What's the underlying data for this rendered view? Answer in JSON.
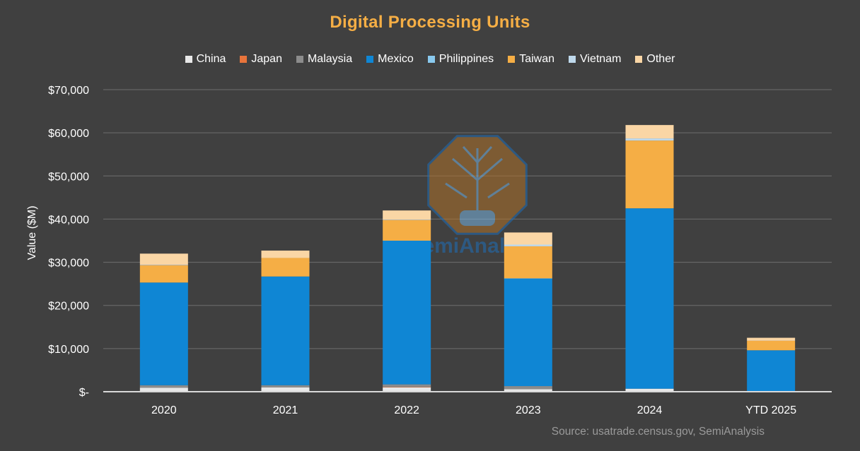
{
  "chart_data": {
    "type": "bar",
    "stacked": true,
    "title": "Digital Processing Units",
    "ylabel": "Value ($M)",
    "xlabel": "",
    "ylim": [
      0,
      70000
    ],
    "yticks": [
      0,
      10000,
      20000,
      30000,
      40000,
      50000,
      60000,
      70000
    ],
    "ytick_labels": [
      "$-",
      "$10,000",
      "$20,000",
      "$30,000",
      "$40,000",
      "$50,000",
      "$60,000",
      "$70,000"
    ],
    "categories": [
      "2020",
      "2021",
      "2022",
      "2023",
      "2024",
      "YTD 2025"
    ],
    "legend_position": "top",
    "series": [
      {
        "name": "China",
        "color": "#E8E8E8",
        "values": [
          900,
          1000,
          1000,
          600,
          700,
          0
        ]
      },
      {
        "name": "Japan",
        "color": "#E8743B",
        "values": [
          0,
          0,
          100,
          0,
          0,
          0
        ]
      },
      {
        "name": "Malaysia",
        "color": "#8C8C8C",
        "values": [
          600,
          500,
          600,
          700,
          0,
          0
        ]
      },
      {
        "name": "Mexico",
        "color": "#0F86D4",
        "values": [
          23800,
          25200,
          33300,
          24900,
          41800,
          9600
        ]
      },
      {
        "name": "Philippines",
        "color": "#89C9EE",
        "values": [
          0,
          0,
          0,
          100,
          0,
          0
        ]
      },
      {
        "name": "Taiwan",
        "color": "#F5AE45",
        "values": [
          4000,
          4300,
          4800,
          7400,
          15700,
          2200
        ]
      },
      {
        "name": "Vietnam",
        "color": "#BFD9EC",
        "values": [
          100,
          0,
          100,
          400,
          500,
          0
        ]
      },
      {
        "name": "Other",
        "color": "#FAD6A5",
        "values": [
          2600,
          1700,
          2100,
          2800,
          3100,
          700
        ]
      }
    ],
    "source": "Source: usatrade.census.gov, SemiAnalysis"
  },
  "watermark_text": "SemiAnalysis"
}
